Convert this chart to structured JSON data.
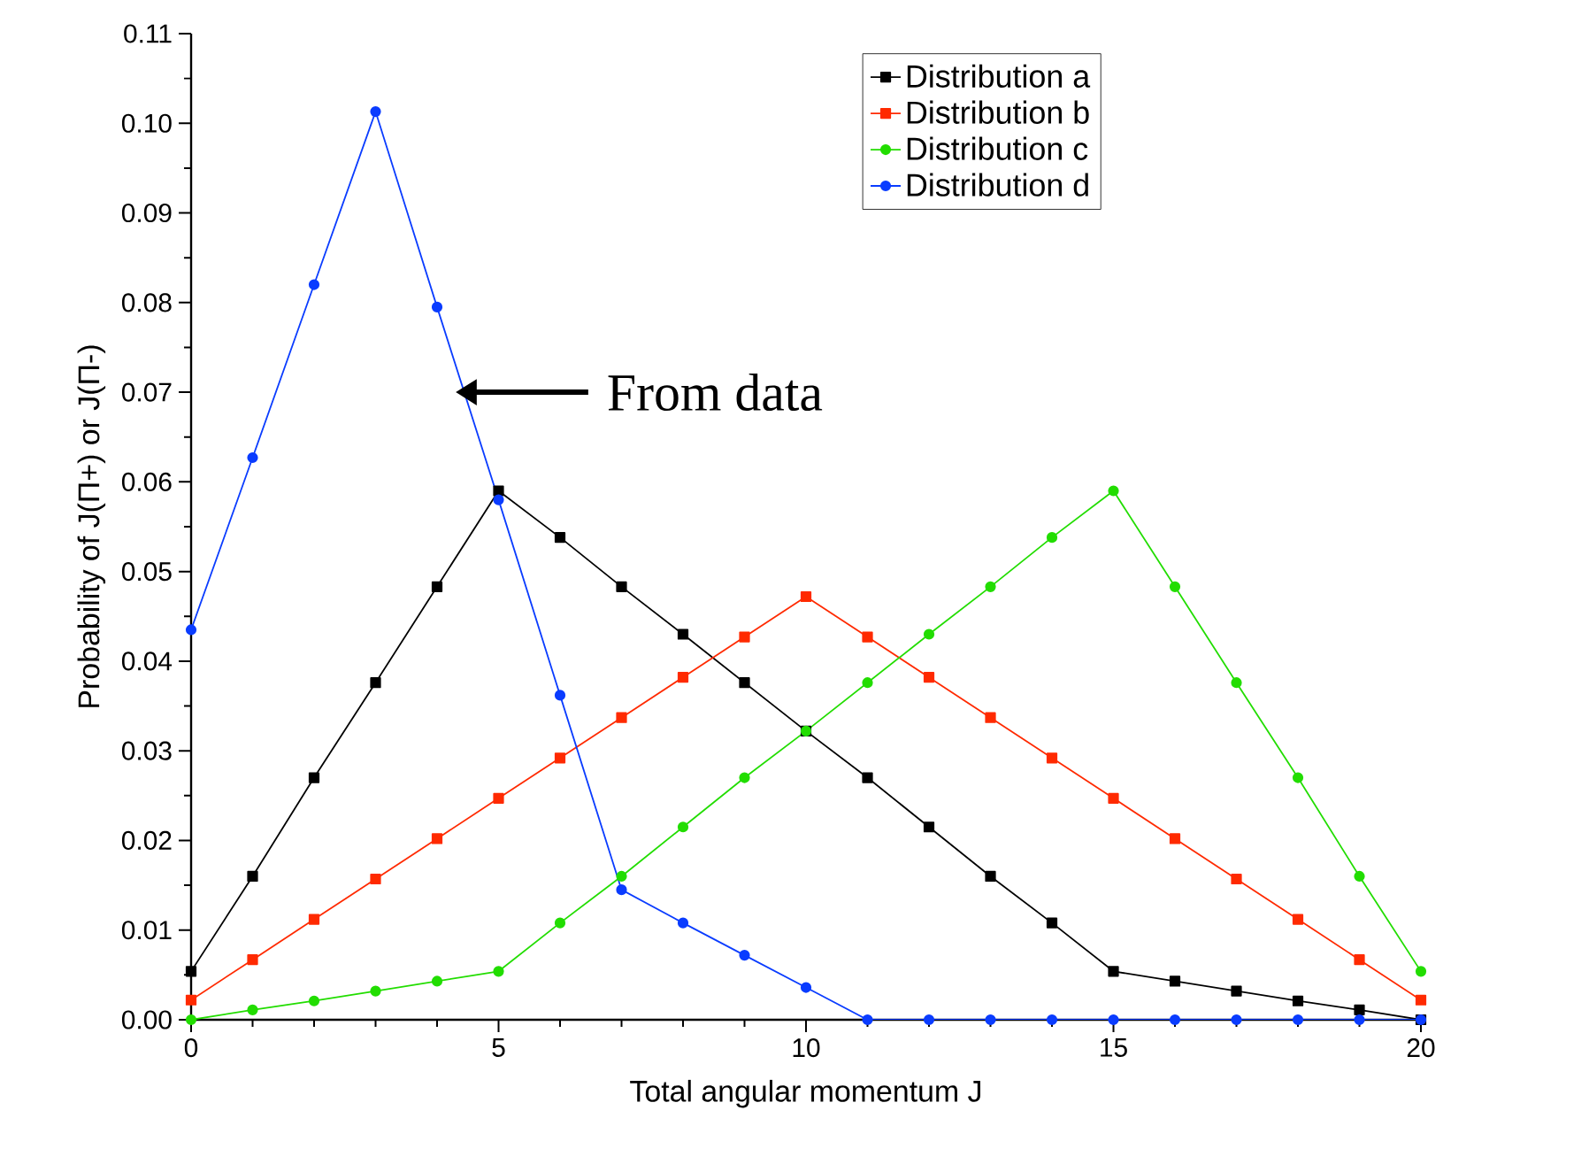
{
  "chart_data": {
    "type": "line",
    "xlabel": "Total angular momentum J",
    "ylabel": "Probability of J(Π+) or J(Π-)",
    "x": [
      0,
      1,
      2,
      3,
      4,
      5,
      6,
      7,
      8,
      9,
      10,
      11,
      12,
      13,
      14,
      15,
      16,
      17,
      18,
      19,
      20
    ],
    "series": [
      {
        "name": "Distribution a",
        "color": "#000000",
        "marker": "square",
        "values": [
          0.0054,
          0.016,
          0.027,
          0.0376,
          0.0483,
          0.059,
          0.0538,
          0.0483,
          0.043,
          0.0376,
          0.0322,
          0.027,
          0.0215,
          0.016,
          0.0108,
          0.0054,
          0.0043,
          0.0032,
          0.0021,
          0.0011,
          0
        ]
      },
      {
        "name": "Distribution b",
        "color": "#ff2a00",
        "marker": "square",
        "values": [
          0.0022,
          0.0067,
          0.0112,
          0.0157,
          0.0202,
          0.0247,
          0.0292,
          0.0337,
          0.0382,
          0.0427,
          0.0472,
          0.0427,
          0.0382,
          0.0337,
          0.0292,
          0.0247,
          0.0202,
          0.0157,
          0.0112,
          0.0067,
          0.0022
        ]
      },
      {
        "name": "Distribution c",
        "color": "#22dd00",
        "marker": "circle",
        "values": [
          0,
          0.0011,
          0.0021,
          0.0032,
          0.0043,
          0.0054,
          0.0108,
          0.016,
          0.0215,
          0.027,
          0.0322,
          0.0376,
          0.043,
          0.0483,
          0.0538,
          0.059,
          0.0483,
          0.0376,
          0.027,
          0.016,
          0.0054
        ]
      },
      {
        "name": "Distribution d",
        "color": "#0a3cff",
        "marker": "circle",
        "values": [
          0.0435,
          0.0627,
          0.082,
          0.1013,
          0.0795,
          0.058,
          0.0362,
          0.0145,
          0.0108,
          0.0072,
          0.0036,
          0,
          0,
          0,
          0,
          0,
          0,
          0,
          0,
          0,
          0
        ]
      }
    ],
    "xlim": [
      0,
      20
    ],
    "xticks": [
      0,
      5,
      10,
      15,
      20
    ],
    "ylim": [
      0,
      0.11
    ],
    "yticks": [
      {
        "value": 0,
        "label": "0.00"
      },
      {
        "value": 0.01,
        "label": "0.01"
      },
      {
        "value": 0.02,
        "label": "0.02"
      },
      {
        "value": 0.03,
        "label": "0.03"
      },
      {
        "value": 0.04,
        "label": "0.04"
      },
      {
        "value": 0.05,
        "label": "0.05"
      },
      {
        "value": 0.06,
        "label": "0.06"
      },
      {
        "value": 0.07,
        "label": "0.07"
      },
      {
        "value": 0.08,
        "label": "0.08"
      },
      {
        "value": 0.09,
        "label": "0.09"
      },
      {
        "value": 0.1,
        "label": "0.10"
      },
      {
        "value": 0.11,
        "label": "0.11"
      }
    ],
    "legend": "top right",
    "grid": false,
    "line_style": "solid",
    "annotations": [
      {
        "text": "From data",
        "x": 4.3,
        "y": 0.07
      }
    ]
  }
}
